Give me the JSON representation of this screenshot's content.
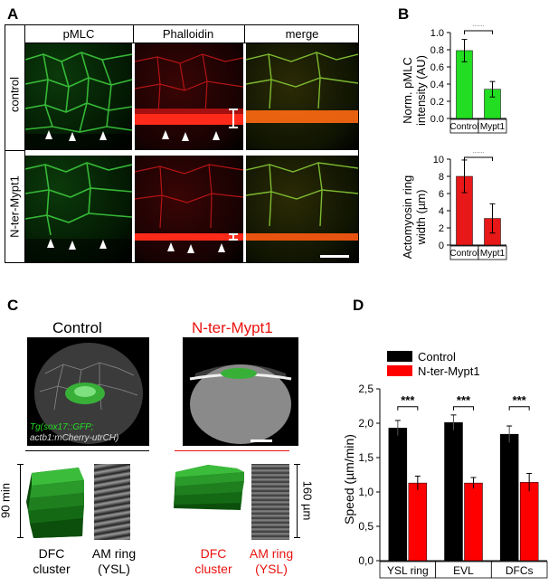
{
  "panels": {
    "A": "A",
    "B": "B",
    "C": "C",
    "D": "D"
  },
  "panelA": {
    "columns": [
      "pMLC",
      "Phalloidin",
      "merge"
    ],
    "rows": [
      "control",
      "N-ter-Mypt1"
    ]
  },
  "panelB": {
    "top": {
      "ylabel_line1": "Norm. pMLC",
      "ylabel_line2": "intensity (AU)",
      "ticks": [
        "0.0",
        "0.2",
        "0.4",
        "0.6",
        "0.8",
        "1.0"
      ],
      "categories": [
        "Control",
        "Mypt1"
      ],
      "sig": "***"
    },
    "bottom": {
      "ylabel_line1": "Actomyosin ring",
      "ylabel_line2": "width (µm)",
      "ticks": [
        "0",
        "2",
        "4",
        "6",
        "8",
        "10"
      ],
      "categories": [
        "Control",
        "Mypt1"
      ],
      "sig": "***"
    }
  },
  "panelC": {
    "control_title": "Control",
    "mypt_title": "N-ter-Mypt1",
    "legend_line1": "Tg(sox17::GFP;",
    "legend_line2": "actb1:mCherry-utrCH)",
    "time_label": "90 min",
    "length_label": "160 µm",
    "control_dfc_1": "DFC",
    "control_dfc_2": "cluster",
    "control_am_1": "AM ring",
    "control_am_2": "(YSL)",
    "mypt_dfc_1": "DFC",
    "mypt_dfc_2": "cluster",
    "mypt_am_1": "AM ring",
    "mypt_am_2": "(YSL)"
  },
  "panelD": {
    "legend": [
      "Control",
      "N-ter-Mypt1"
    ],
    "ylabel": "Speed (µm/min)",
    "ticks": [
      "0,0",
      "0,5",
      "1,0",
      "1,5",
      "2,0",
      "2,5"
    ],
    "categories": [
      "YSL ring",
      "EVL",
      "DFCs"
    ],
    "sig": [
      "***",
      "***",
      "***"
    ]
  },
  "colors": {
    "control_bar_B": "#22dd22",
    "mypt_bar_B": "#22dd22",
    "bar_B_bottom": "#e81818",
    "control_D": "#000000",
    "mypt_D": "#ff0000",
    "mypt_text": "#e8130f"
  },
  "chart_data": [
    {
      "type": "bar",
      "panel": "B-top",
      "categories": [
        "Control",
        "Mypt1"
      ],
      "values": [
        0.79,
        0.34
      ],
      "errors": [
        0.13,
        0.09
      ],
      "ylim": [
        0,
        1.0
      ],
      "ylabel": "Norm. pMLC intensity (AU)"
    },
    {
      "type": "bar",
      "panel": "B-bottom",
      "categories": [
        "Control",
        "Mypt1"
      ],
      "values": [
        8.0,
        3.1
      ],
      "errors": [
        1.9,
        1.7
      ],
      "ylim": [
        0,
        10
      ],
      "ylabel": "Actomyosin ring width (µm)"
    },
    {
      "type": "bar",
      "panel": "D",
      "categories": [
        "YSL ring",
        "EVL",
        "DFCs"
      ],
      "series": [
        {
          "name": "Control",
          "values": [
            1.93,
            2.01,
            1.84
          ],
          "errors": [
            0.11,
            0.11,
            0.12
          ]
        },
        {
          "name": "N-ter-Mypt1",
          "values": [
            1.13,
            1.13,
            1.14
          ],
          "errors": [
            0.1,
            0.08,
            0.13
          ]
        }
      ],
      "ylim": [
        0,
        2.5
      ],
      "ylabel": "Speed (µm/min)"
    }
  ]
}
